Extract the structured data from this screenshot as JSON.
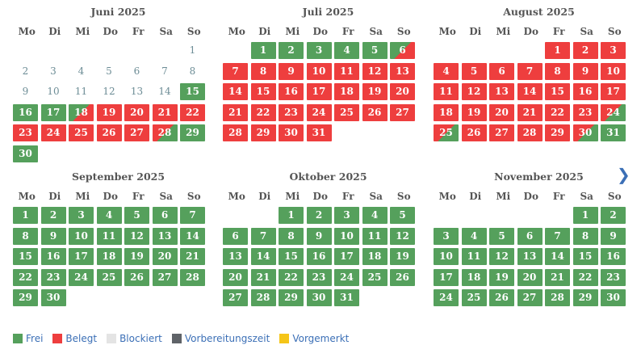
{
  "weekdays": [
    "Mo",
    "Di",
    "Mi",
    "Do",
    "Fr",
    "Sa",
    "So"
  ],
  "nav": {
    "next_icon": "❯"
  },
  "months": [
    {
      "title": "Juni 2025",
      "offset": 6,
      "past": [
        1,
        2,
        3,
        4,
        5,
        6,
        7,
        8,
        9,
        10,
        11,
        12,
        13,
        14
      ],
      "booked": [
        19,
        20,
        21,
        22,
        23,
        24,
        25,
        26,
        27
      ],
      "free_to_booked": [
        18
      ],
      "booked_to_free": [
        28
      ],
      "days": 30
    },
    {
      "title": "Juli 2025",
      "offset": 1,
      "past": [],
      "booked": [
        7,
        8,
        9,
        10,
        11,
        12,
        13,
        14,
        15,
        16,
        17,
        18,
        19,
        20,
        21,
        22,
        23,
        24,
        25,
        26,
        27,
        28,
        29,
        30,
        31
      ],
      "free_to_booked": [
        6
      ],
      "booked_to_free": [],
      "days": 31
    },
    {
      "title": "August 2025",
      "offset": 4,
      "past": [],
      "booked": [
        1,
        2,
        3,
        4,
        5,
        6,
        7,
        8,
        9,
        10,
        11,
        12,
        13,
        14,
        15,
        16,
        17,
        18,
        19,
        20,
        21,
        22,
        23,
        26,
        27,
        28,
        29
      ],
      "free_to_booked": [],
      "booked_to_free": [
        24,
        25,
        30
      ],
      "days": 31
    },
    {
      "title": "September 2025",
      "offset": 0,
      "past": [],
      "booked": [],
      "free_to_booked": [],
      "booked_to_free": [],
      "days": 30
    },
    {
      "title": "Oktober 2025",
      "offset": 2,
      "past": [],
      "booked": [],
      "free_to_booked": [],
      "booked_to_free": [],
      "days": 31
    },
    {
      "title": "November 2025",
      "offset": 5,
      "past": [],
      "booked": [],
      "free_to_booked": [],
      "booked_to_free": [],
      "days": 30
    }
  ],
  "legend": [
    {
      "label": "Frei",
      "color": "#55a05c"
    },
    {
      "label": "Belegt",
      "color": "#ee3e3e"
    },
    {
      "label": "Blockiert",
      "color": "#e4e4e4"
    },
    {
      "label": "Vorbereitungszeit",
      "color": "#5f6368"
    },
    {
      "label": "Vorgemerkt",
      "color": "#f5c518"
    }
  ]
}
